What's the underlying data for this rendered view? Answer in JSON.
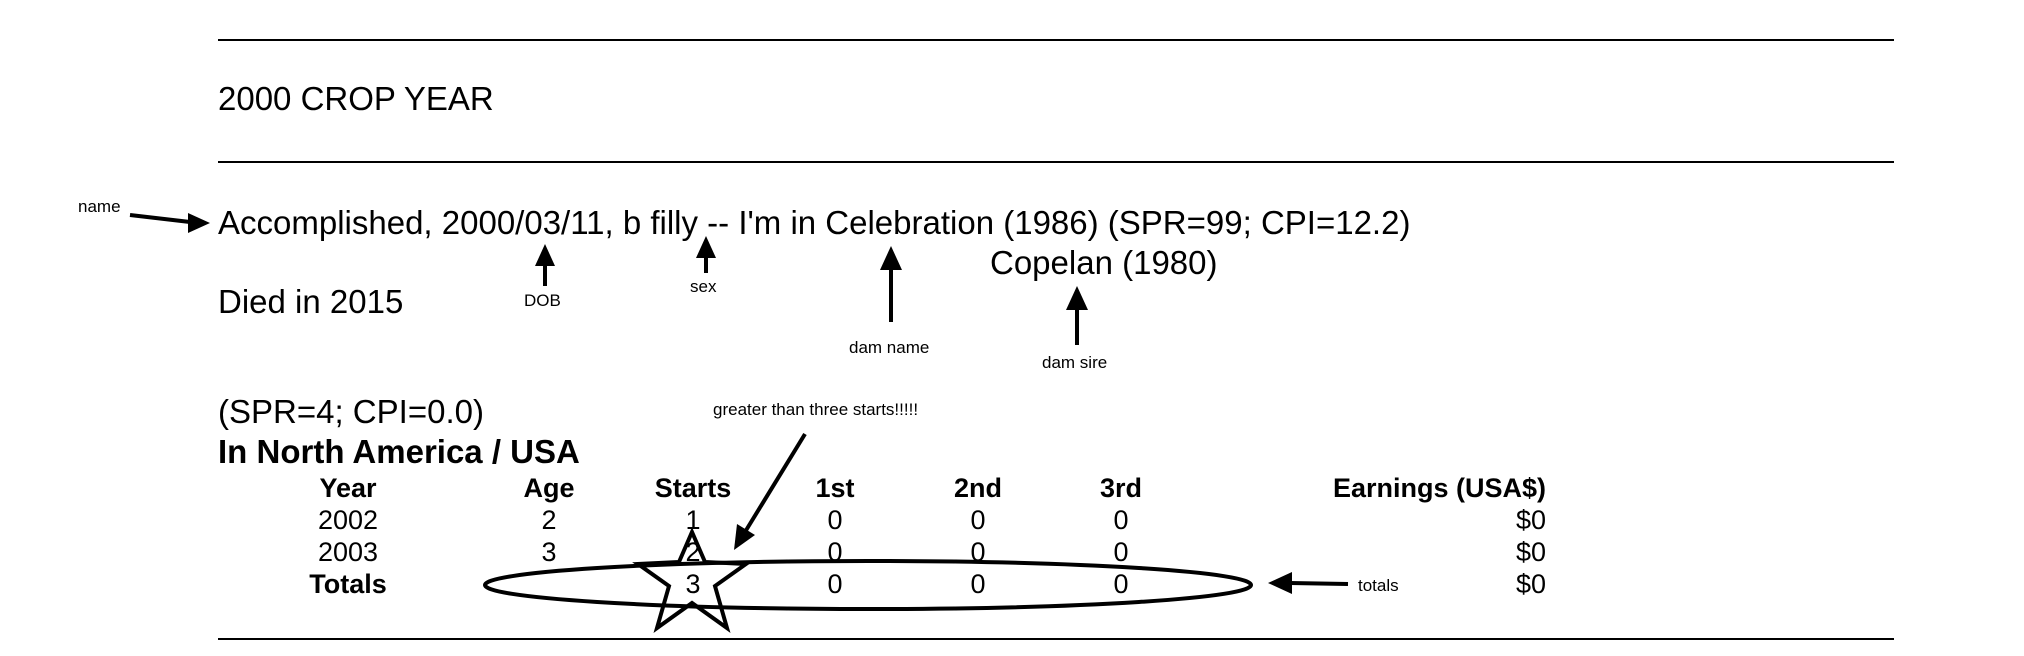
{
  "heading": "2000 CROP YEAR",
  "horse_line": "Accomplished, 2000/03/11, b filly -- I'm in Celebration (1986) (SPR=99; CPI=12.2)",
  "dam_sire": "Copelan (1980)",
  "died": "Died in 2015",
  "rating": "(SPR=4; CPI=0.0)",
  "region": "In North America / USA",
  "table": {
    "headers": [
      "Year",
      "Age",
      "Starts",
      "1st",
      "2nd",
      "3rd",
      "Earnings (USA$)"
    ],
    "rows": [
      [
        "2002",
        "2",
        "1",
        "0",
        "0",
        "0",
        "$0"
      ],
      [
        "2003",
        "3",
        "2",
        "0",
        "0",
        "0",
        "$0"
      ]
    ],
    "totals": [
      "Totals",
      "",
      "3",
      "0",
      "0",
      "0",
      "$0"
    ]
  },
  "annotations": {
    "name": "name",
    "dob": "DOB",
    "sex": "sex",
    "dam_name": "dam name",
    "dam_sire": "dam sire",
    "starts_note": "greater than three starts!!!!!",
    "totals": "totals"
  }
}
